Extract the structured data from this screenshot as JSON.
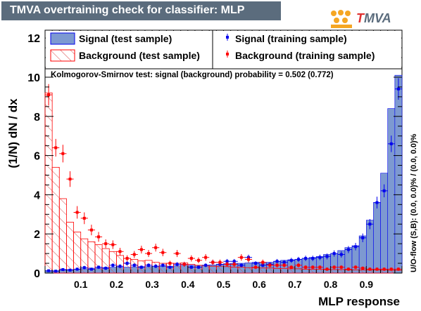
{
  "header": {
    "title": "TMVA overtraining check for classifier: MLP",
    "logo_text": "TMVA"
  },
  "colors": {
    "signal_fill": "#7d99d1",
    "signal_line": "#0000ee",
    "background_line": "#ff0000",
    "background_hatch": "#d84a4a",
    "title_bg": "#5b6c7d",
    "logo_orange": "#f5a623"
  },
  "chart_data": {
    "type": "histogram",
    "xlabel": "MLP response",
    "ylabel": "(1/N) dN  /  dx",
    "xlim": [
      0.0,
      1.0
    ],
    "ylim": [
      0,
      12.4
    ],
    "xticks": [
      "0.1",
      "0.2",
      "0.3",
      "0.4",
      "0.5",
      "0.6",
      "0.7",
      "0.8",
      "0.9"
    ],
    "yticks": [
      "0",
      "2",
      "4",
      "6",
      "8",
      "10",
      "12"
    ],
    "ks_text": "Kolmogorov-Smirnov test: signal (background) probability = 0.502 (0.772)",
    "uo_flow_text": "U/O-flow (S,B): (0.0, 0.0)% / (0.0, 0.0)%",
    "legend": [
      "Signal (test sample)",
      "Signal (training sample)",
      "Background (test sample)",
      "Background (training sample)"
    ],
    "bin_edges": [
      0.0,
      0.02,
      0.04,
      0.06,
      0.08,
      0.1,
      0.12,
      0.14,
      0.16,
      0.18,
      0.2,
      0.22,
      0.24,
      0.26,
      0.28,
      0.3,
      0.32,
      0.34,
      0.36,
      0.38,
      0.4,
      0.42,
      0.44,
      0.46,
      0.48,
      0.5,
      0.52,
      0.54,
      0.56,
      0.58,
      0.6,
      0.62,
      0.64,
      0.66,
      0.68,
      0.7,
      0.72,
      0.74,
      0.76,
      0.78,
      0.8,
      0.82,
      0.84,
      0.86,
      0.88,
      0.9,
      0.92,
      0.94,
      0.96,
      0.98,
      1.0
    ],
    "series": [
      {
        "name": "Signal (test sample)",
        "style": "filled",
        "values": [
          0.1,
          0.12,
          0.15,
          0.18,
          0.2,
          0.22,
          0.25,
          0.25,
          0.28,
          0.3,
          0.3,
          0.3,
          0.32,
          0.33,
          0.33,
          0.35,
          0.35,
          0.35,
          0.38,
          0.4,
          0.4,
          0.4,
          0.4,
          0.42,
          0.45,
          0.48,
          0.5,
          0.5,
          0.52,
          0.55,
          0.55,
          0.55,
          0.6,
          0.65,
          0.68,
          0.7,
          0.75,
          0.8,
          0.85,
          0.95,
          1.0,
          1.15,
          1.3,
          1.4,
          1.9,
          2.7,
          3.6,
          5.1,
          8.4,
          10.1
        ]
      },
      {
        "name": "Background (test sample)",
        "style": "hatched",
        "values": [
          9.2,
          5.4,
          3.8,
          2.6,
          2.1,
          1.75,
          1.6,
          1.45,
          1.25,
          1.1,
          0.9,
          0.75,
          0.7,
          0.62,
          0.65,
          0.55,
          0.5,
          0.5,
          0.5,
          0.52,
          0.45,
          0.4,
          0.38,
          0.35,
          0.35,
          0.33,
          0.3,
          0.3,
          0.28,
          0.28,
          0.26,
          0.26,
          0.24,
          0.24,
          0.22,
          0.22,
          0.2,
          0.2,
          0.2,
          0.18,
          0.18,
          0.18,
          0.17,
          0.16,
          0.16,
          0.15,
          0.15,
          0.15,
          0.14,
          0.14
        ]
      },
      {
        "name": "Signal (training sample)",
        "style": "points",
        "values": [
          0.12,
          0.1,
          0.18,
          0.15,
          0.2,
          0.28,
          0.2,
          0.3,
          0.25,
          0.4,
          0.35,
          0.5,
          0.4,
          0.3,
          0.4,
          0.35,
          0.4,
          0.3,
          0.45,
          0.45,
          0.3,
          0.3,
          0.4,
          0.55,
          0.45,
          0.6,
          0.6,
          0.4,
          0.8,
          0.5,
          0.4,
          0.45,
          0.6,
          0.55,
          0.65,
          0.7,
          0.75,
          0.75,
          0.8,
          0.85,
          1.0,
          0.95,
          1.2,
          1.35,
          1.8,
          2.5,
          3.6,
          4.2,
          6.6,
          9.4
        ],
        "errors": [
          0.06,
          0.06,
          0.07,
          0.07,
          0.08,
          0.09,
          0.08,
          0.09,
          0.09,
          0.1,
          0.1,
          0.11,
          0.1,
          0.09,
          0.1,
          0.1,
          0.1,
          0.09,
          0.11,
          0.11,
          0.09,
          0.09,
          0.1,
          0.12,
          0.11,
          0.12,
          0.12,
          0.1,
          0.14,
          0.11,
          0.1,
          0.11,
          0.12,
          0.12,
          0.13,
          0.13,
          0.14,
          0.14,
          0.14,
          0.15,
          0.16,
          0.16,
          0.18,
          0.19,
          0.22,
          0.26,
          0.3,
          0.33,
          0.42,
          0.55
        ]
      },
      {
        "name": "Background (training sample)",
        "style": "points",
        "values": [
          9.1,
          6.4,
          6.1,
          4.8,
          3.1,
          2.8,
          2.2,
          1.85,
          1.5,
          1.45,
          1.1,
          0.75,
          0.95,
          1.2,
          1.0,
          1.3,
          1.05,
          0.5,
          1.0,
          0.45,
          0.75,
          0.65,
          0.8,
          0.55,
          0.55,
          0.45,
          0.45,
          0.8,
          0.7,
          0.3,
          0.55,
          0.4,
          0.4,
          0.4,
          0.3,
          0.4,
          0.3,
          0.3,
          0.3,
          0.2,
          0.3,
          0.3,
          0.2,
          0.3,
          0.25,
          0.2,
          0.2,
          0.2,
          0.2,
          0.2
        ],
        "errors": [
          0.55,
          0.45,
          0.45,
          0.4,
          0.32,
          0.3,
          0.27,
          0.25,
          0.22,
          0.22,
          0.19,
          0.16,
          0.18,
          0.2,
          0.18,
          0.2,
          0.19,
          0.13,
          0.18,
          0.13,
          0.16,
          0.15,
          0.17,
          0.14,
          0.14,
          0.13,
          0.13,
          0.17,
          0.16,
          0.1,
          0.14,
          0.12,
          0.12,
          0.12,
          0.1,
          0.12,
          0.1,
          0.1,
          0.1,
          0.09,
          0.1,
          0.1,
          0.09,
          0.1,
          0.09,
          0.09,
          0.09,
          0.09,
          0.09,
          0.09
        ]
      }
    ]
  }
}
